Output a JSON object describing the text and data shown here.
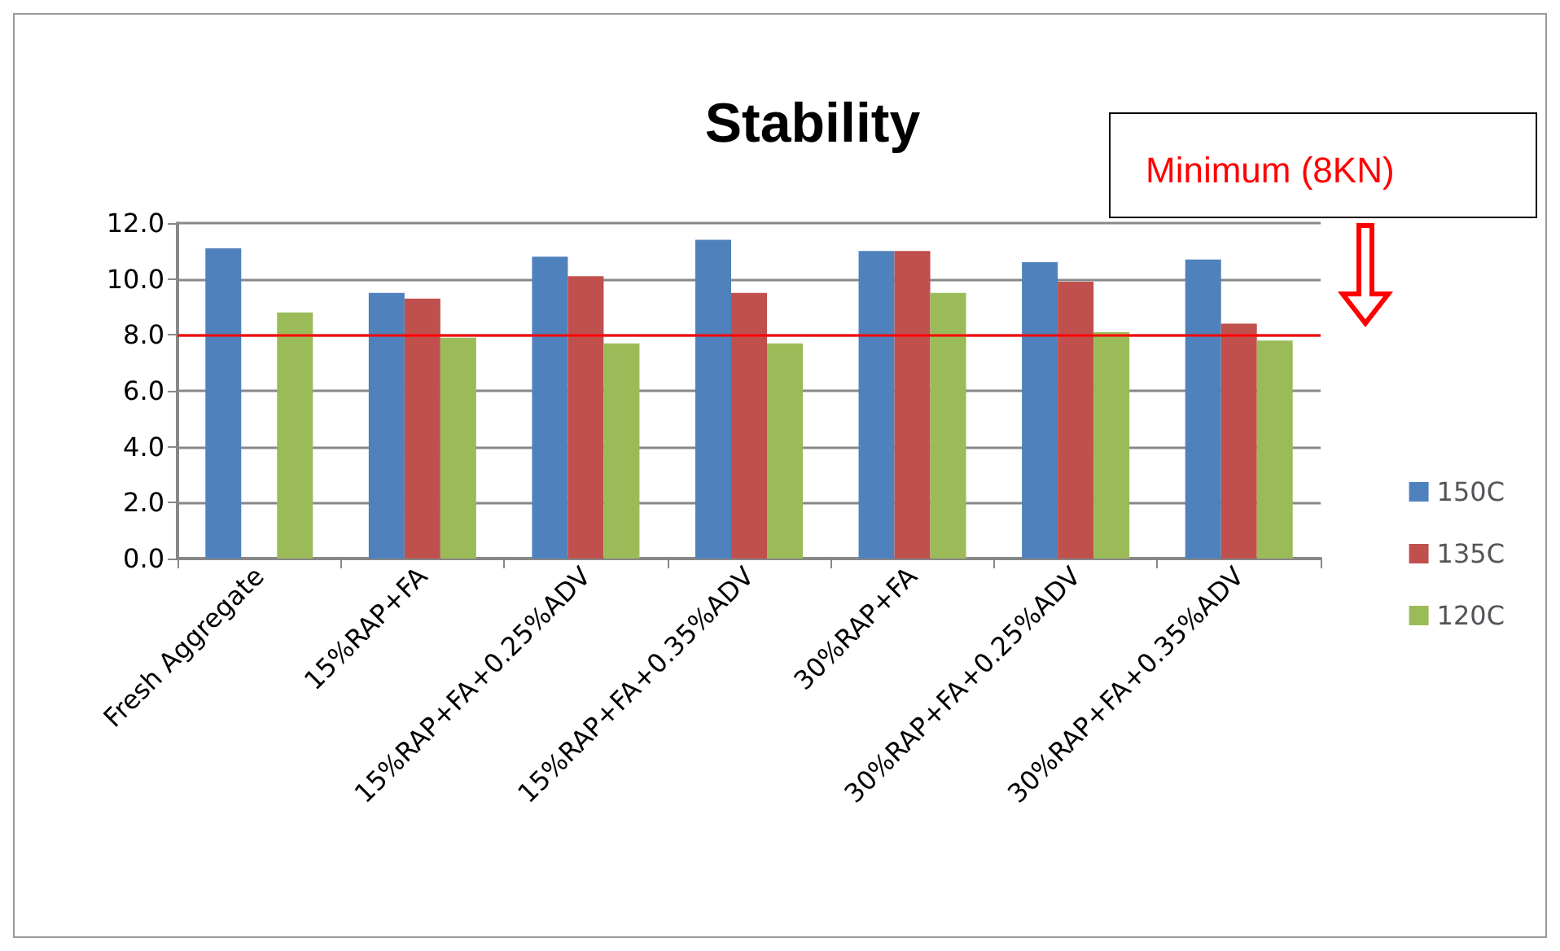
{
  "chart_data": {
    "type": "bar",
    "title": "Stability",
    "categories": [
      "Fresh Aggregate",
      "15%RAP+FA",
      "15%RAP+FA+0.25%ADV",
      "15%RAP+FA+0.35%ADV",
      "30%RAP+FA",
      "30%RAP+FA+0.25%ADV",
      "30%RAP+FA+0.35%ADV"
    ],
    "series": [
      {
        "name": "150C",
        "color": "#4f81bd",
        "values": [
          11.1,
          9.5,
          10.8,
          11.4,
          11.0,
          10.6,
          10.7
        ]
      },
      {
        "name": "135C",
        "color": "#c0504d",
        "values": [
          null,
          9.3,
          10.1,
          9.5,
          11.0,
          9.9,
          8.4
        ]
      },
      {
        "name": "120C",
        "color": "#9bbb59",
        "values": [
          8.8,
          7.9,
          7.7,
          7.7,
          9.5,
          8.1,
          7.8
        ]
      }
    ],
    "ylim": [
      0,
      12
    ],
    "yticks": [
      {
        "value": 0,
        "label": "0.0"
      },
      {
        "value": 2,
        "label": "2.0"
      },
      {
        "value": 4,
        "label": "4.0"
      },
      {
        "value": 6,
        "label": "6.0"
      },
      {
        "value": 8,
        "label": "8.0"
      },
      {
        "value": 10,
        "label": "10.0"
      },
      {
        "value": 12,
        "label": "12.0"
      }
    ],
    "ref_lines": [
      {
        "axis": "y",
        "value": 8,
        "label": "Minimum (8KN)",
        "color": "#ff0000"
      }
    ],
    "grid": "y",
    "legend": "right"
  }
}
